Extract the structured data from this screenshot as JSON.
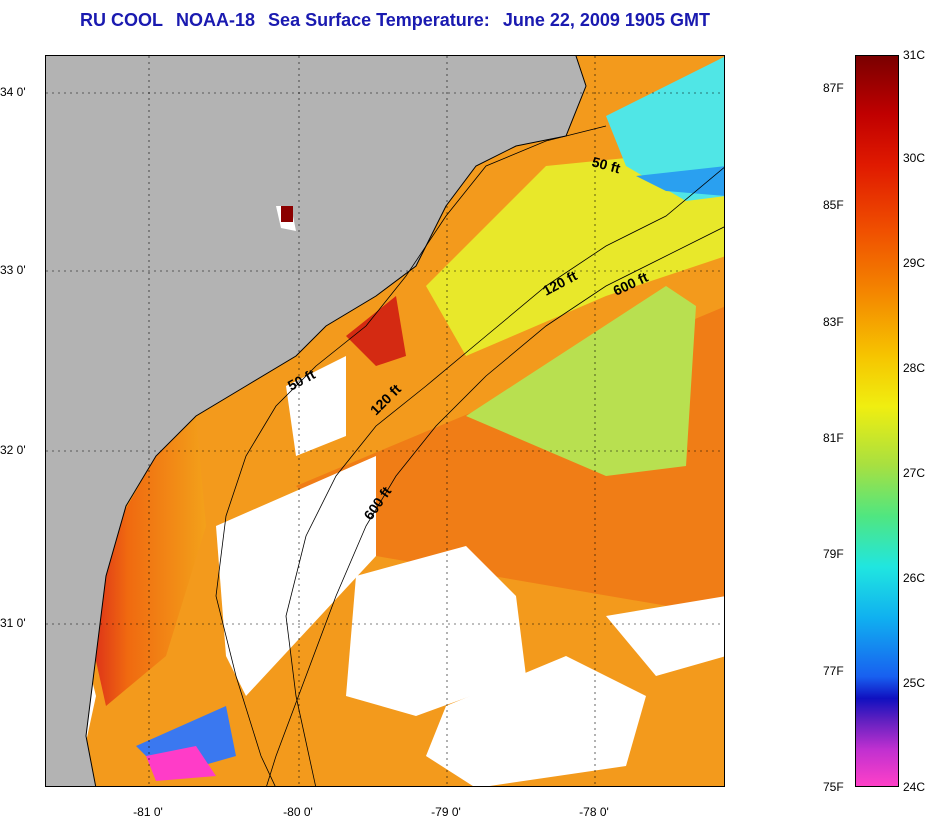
{
  "title": {
    "org": "RU COOL",
    "satellite": "NOAA-18",
    "product": "Sea Surface Temperature:",
    "datetime": "June 22, 2009 1905 GMT"
  },
  "axes": {
    "lat_labels": [
      "34 0'",
      "33 0'",
      "32 0'",
      "31 0'"
    ],
    "lon_labels": [
      "-81 0'",
      "-80 0'",
      "-79 0'",
      "-78 0'"
    ]
  },
  "contours": {
    "labels": [
      "50 ft",
      "120 ft",
      "600 ft",
      "50 ft",
      "120 ft",
      "600 ft"
    ]
  },
  "colorbar": {
    "fahrenheit": [
      "87F",
      "85F",
      "83F",
      "81F",
      "79F",
      "77F",
      "75F"
    ],
    "celsius": [
      "31C",
      "30C",
      "29C",
      "28C",
      "27C",
      "26C",
      "25C",
      "24C"
    ],
    "range_c": [
      24,
      31
    ],
    "range_f": [
      75.2,
      87.8
    ]
  },
  "colors": {
    "title": "#1a1ab0",
    "land": "#b3b3b3",
    "no_data": "#ffffff",
    "grid": "#000000"
  }
}
